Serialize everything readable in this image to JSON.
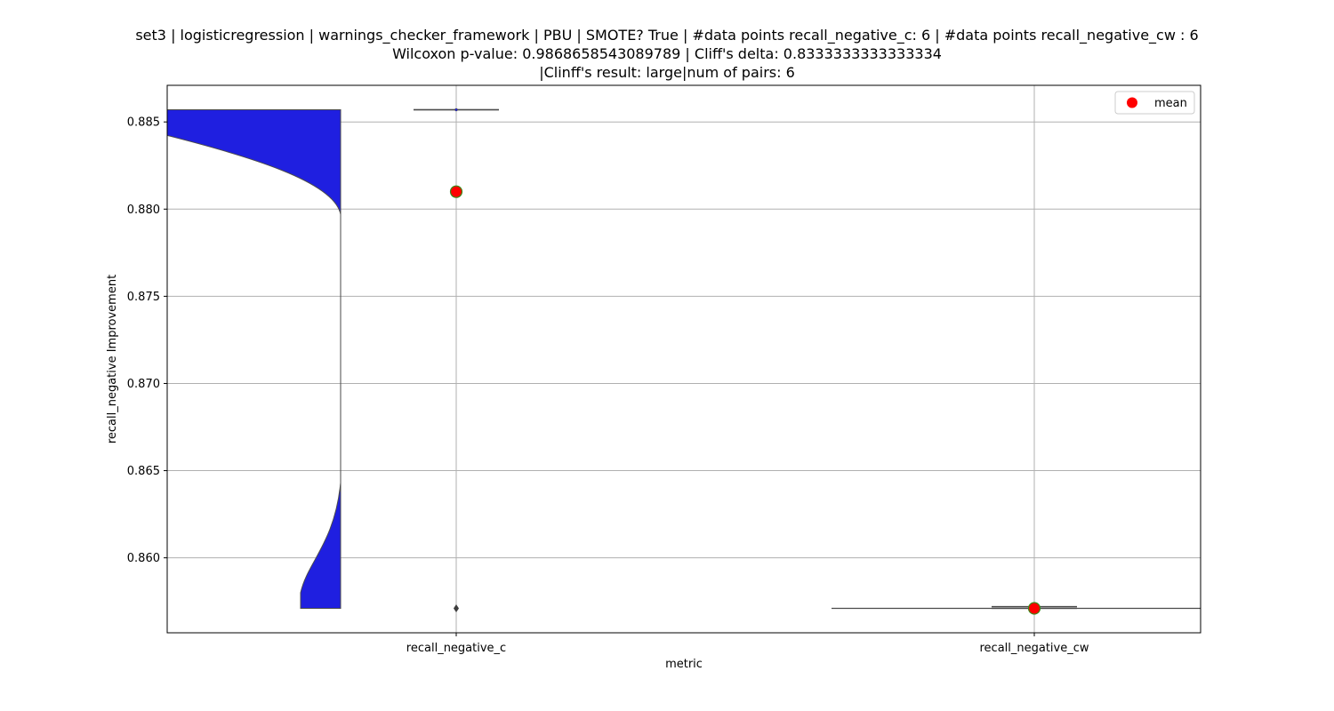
{
  "chart_data": {
    "type": "violin",
    "title_lines": [
      "set3 | logisticregression | warnings_checker_framework | PBU | SMOTE? True | #data points recall_negative_c: 6 | #data points recall_negative_cw : 6",
      "Wilcoxon p-value: 0.9868658543089789 | Cliff's delta: 0.8333333333333334",
      "|Clinff's result: large|num of pairs: 6"
    ],
    "xlabel": "metric",
    "ylabel": "recall_negative Improvement",
    "categories": [
      "recall_negative_c",
      "recall_negative_cw"
    ],
    "ylim": [
      0.8557,
      0.8871
    ],
    "yticks": [
      0.86,
      0.865,
      0.87,
      0.875,
      0.88,
      0.885
    ],
    "ytick_labels": [
      "0.860",
      "0.865",
      "0.870",
      "0.875",
      "0.880",
      "0.885"
    ],
    "grid": true,
    "legend": {
      "label": "mean",
      "placement": "top-right"
    },
    "series": [
      {
        "category": "recall_negative_c",
        "min": 0.8571,
        "q1": 0.8857,
        "median": 0.8857,
        "q3": 0.8857,
        "max": 0.8857,
        "mean": 0.881,
        "outliers": [
          0.8571
        ]
      },
      {
        "category": "recall_negative_cw",
        "min": 0.8571,
        "q1": 0.8571,
        "median": 0.8571,
        "q3": 0.8572,
        "max": 0.8572,
        "mean": 0.8571,
        "outliers": []
      }
    ],
    "colors": {
      "violin_fill": "#1f1fe0",
      "mean_marker": "#ff0000",
      "mean_edge": "#3a8a1a",
      "box_line": "#4a4a4a",
      "grid": "#b0b0b0"
    }
  }
}
